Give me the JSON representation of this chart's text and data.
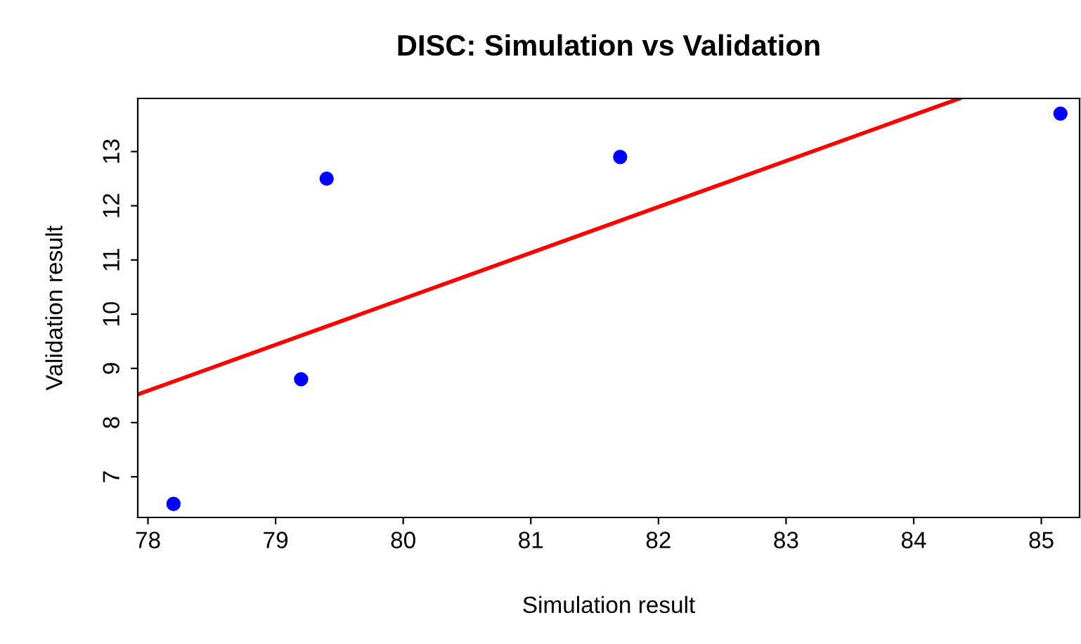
{
  "chart_data": {
    "type": "scatter",
    "title": "DISC: Simulation vs Validation",
    "xlabel": "Simulation result",
    "ylabel": "Validation result",
    "series": [
      {
        "type": "scatter",
        "color": "#0000ff",
        "x": [
          78.2,
          79.2,
          79.4,
          81.7,
          85.15
        ],
        "values": [
          6.5,
          8.8,
          12.5,
          12.9,
          13.7
        ],
        "marker": "circle"
      },
      {
        "type": "line",
        "color": "#ff0000",
        "x": [
          77.92,
          84.36
        ],
        "values": [
          8.52,
          13.98
        ],
        "line_style": "solid"
      }
    ],
    "xlim": [
      77.92,
      85.3
    ],
    "ylim": [
      6.25,
      13.98
    ],
    "xticks": [
      78,
      79,
      80,
      81,
      82,
      83,
      84,
      85
    ],
    "yticks": [
      7,
      8,
      9,
      10,
      11,
      12,
      13
    ],
    "grid": false,
    "legend": false
  }
}
